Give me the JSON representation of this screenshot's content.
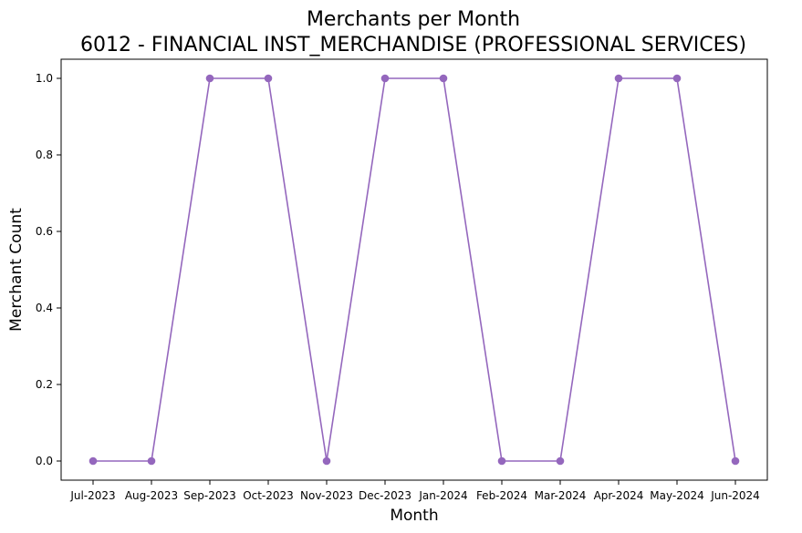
{
  "chart_data": {
    "type": "line",
    "title": "Merchants per Month",
    "subtitle": "6012 - FINANCIAL INST_MERCHANDISE (PROFESSIONAL SERVICES)",
    "xlabel": "Month",
    "ylabel": "Merchant Count",
    "categories": [
      "Jul-2023",
      "Aug-2023",
      "Sep-2023",
      "Oct-2023",
      "Nov-2023",
      "Dec-2023",
      "Jan-2024",
      "Feb-2024",
      "Mar-2024",
      "Apr-2024",
      "May-2024",
      "Jun-2024"
    ],
    "series": [
      {
        "values": [
          0,
          0,
          1,
          1,
          0,
          1,
          1,
          0,
          0,
          1,
          1,
          0
        ],
        "color": "#9467bd",
        "marker": "circle"
      }
    ],
    "ylim": [
      -0.05,
      1.05
    ],
    "yticks": [
      0.0,
      0.2,
      0.4,
      0.6,
      0.8,
      1.0
    ],
    "ytick_labels": [
      "0.0",
      "0.2",
      "0.4",
      "0.6",
      "0.8",
      "1.0"
    ],
    "grid": false,
    "legend": false
  }
}
